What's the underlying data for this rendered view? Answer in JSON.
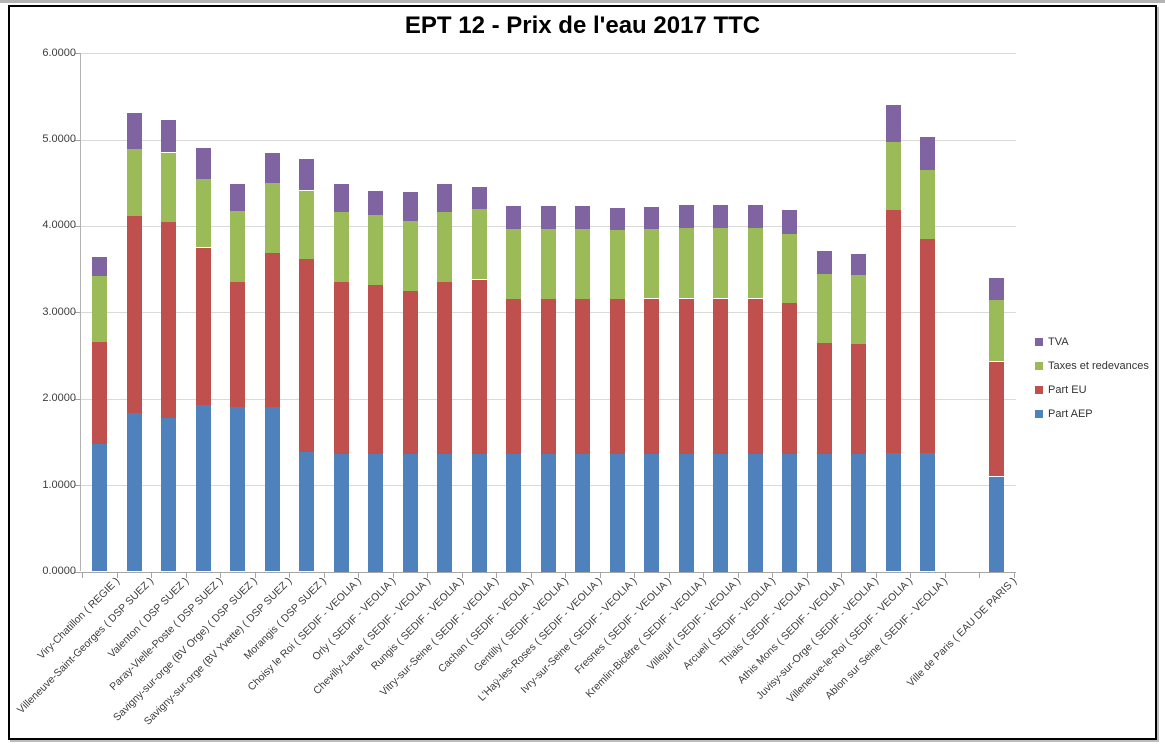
{
  "chart_data": {
    "type": "bar",
    "stacked": true,
    "title": "EPT 12 - Prix de l'eau 2017 TTC",
    "xlabel": "",
    "ylabel": "",
    "ylim": [
      0,
      6
    ],
    "grid": true,
    "legend_position": "right",
    "yticks": [
      {
        "value": 0,
        "label": "0.0000"
      },
      {
        "value": 1,
        "label": "1.0000"
      },
      {
        "value": 2,
        "label": "2.0000"
      },
      {
        "value": 3,
        "label": "3.0000"
      },
      {
        "value": 4,
        "label": "4.0000"
      },
      {
        "value": 5,
        "label": "5.0000"
      },
      {
        "value": 6,
        "label": "6.0000"
      }
    ],
    "categories": [
      "Viry-Chatillon ( REGIE )",
      "Villeneuve-Saint-Georges ( DSP SUEZ )",
      "Valenton ( DSP SUEZ )",
      "Paray-Vielle-Poste ( DSP SUEZ )",
      "Savigny-sur-orge (BV Orge) ( DSP SUEZ )",
      "Savigny-sur-orge (BV Yvette) ( DSP SUEZ )",
      "Morangis ( DSP SUEZ )",
      "Choisy le Roi ( SEDIF - VEOLIA )",
      "Orly ( SEDIF - VEOLIA )",
      "Chevilly-Larue ( SEDIF - VEOLIA )",
      "Rungis ( SEDIF - VEOLIA )",
      "Vitry-sur-Seine ( SEDIF - VEOLIA )",
      "Cachan ( SEDIF - VEOLIA )",
      "Gentilly ( SEDIF - VEOLIA )",
      "L'Haÿ-les-Roses ( SEDIF - VEOLIA )",
      "Ivry-sur-Seine ( SEDIF - VEOLIA )",
      "Fresnes ( SEDIF - VEOLIA )",
      "Kremlin-Bicêtre ( SEDIF - VEOLIA )",
      "Villejuif ( SEDIF - VEOLIA )",
      "Arcueil ( SEDIF - VEOLIA )",
      "Thiais ( SEDIF - VEOLIA )",
      "Athis Mons ( SEDIF - VEOLIA )",
      "Juvisy-sur-Orge ( SEDIF - VEOLIA )",
      "Villeneuve-le-Roi ( SEDIF - VEOLIA )",
      "Ablon sur Seine ( SEDIF - VEOLIA )",
      "",
      "Ville de Paris ( EAU DE PARIS )"
    ],
    "series": [
      {
        "name": "Part AEP",
        "color": "#4F81BD",
        "values": [
          1.48,
          1.83,
          1.78,
          1.93,
          1.9,
          1.9,
          1.38,
          1.36,
          1.36,
          1.36,
          1.36,
          1.36,
          1.36,
          1.36,
          1.36,
          1.36,
          1.36,
          1.36,
          1.36,
          1.36,
          1.36,
          1.36,
          1.36,
          1.37,
          1.37,
          0,
          1.1
        ]
      },
      {
        "name": "Part EU",
        "color": "#C0504D",
        "values": [
          1.18,
          2.28,
          2.27,
          1.82,
          1.45,
          1.79,
          2.24,
          1.99,
          1.96,
          1.89,
          1.99,
          2.02,
          1.8,
          1.8,
          1.8,
          1.79,
          1.8,
          1.8,
          1.8,
          1.8,
          1.75,
          1.28,
          1.27,
          2.81,
          2.48,
          0,
          1.33
        ]
      },
      {
        "name": "Taxes et redevances",
        "color": "#9BBB59",
        "values": [
          0.76,
          0.78,
          0.8,
          0.79,
          0.82,
          0.81,
          0.79,
          0.81,
          0.81,
          0.81,
          0.81,
          0.82,
          0.81,
          0.81,
          0.81,
          0.8,
          0.8,
          0.82,
          0.82,
          0.82,
          0.8,
          0.8,
          0.8,
          0.79,
          0.8,
          0,
          0.71
        ]
      },
      {
        "name": "TVA",
        "color": "#8064A2",
        "values": [
          0.22,
          0.42,
          0.38,
          0.36,
          0.31,
          0.34,
          0.36,
          0.33,
          0.28,
          0.33,
          0.32,
          0.25,
          0.26,
          0.26,
          0.26,
          0.26,
          0.26,
          0.26,
          0.26,
          0.26,
          0.28,
          0.27,
          0.24,
          0.43,
          0.38,
          0,
          0.26
        ]
      }
    ],
    "legend_entries_top_to_bottom": [
      "TVA",
      "Taxes et redevances",
      "Part EU",
      "Part AEP"
    ],
    "colors": {
      "gridline": "#D9D9D9",
      "axis_line": "#A6A6A6",
      "tick_text": "#3D3D3D",
      "title_text": "#000000",
      "legend_text": "#333333",
      "chart_border": "#000000",
      "background": "#FFFFFF"
    }
  }
}
